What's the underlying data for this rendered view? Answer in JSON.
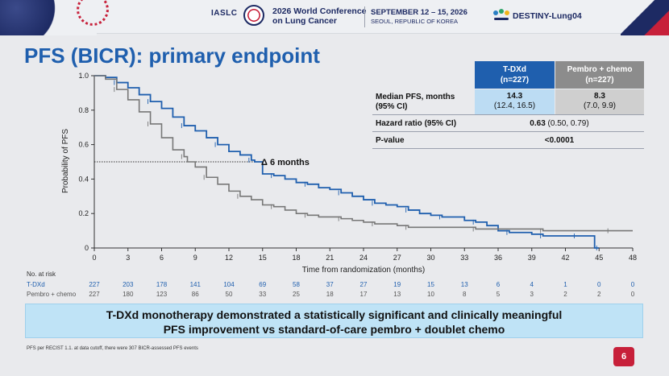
{
  "header": {
    "org": "IASLC",
    "conference_line1": "2026 World Conference",
    "conference_line2": "on Lung Cancer",
    "dates_line1": "SEPTEMBER 12 – 15, 2026",
    "dates_line2": "SEOUL, REPUBLIC OF KOREA",
    "trial": "DESTINY-Lung04"
  },
  "slide": {
    "title": "PFS (BICR): primary endpoint",
    "banner_line1": "T-DXd monotherapy demonstrated a statistically significant and clinically meaningful",
    "banner_line2": "PFS improvement vs standard-of-care pembro + doublet chemo",
    "footnote": "PFS per RECIST 1.1. at data cutoff, there were 307 BICR-assessed PFS events",
    "page_number": "6"
  },
  "stats_table": {
    "col_tdxd_line1": "T-DXd",
    "col_tdxd_line2": "(n=227)",
    "col_pembro_line1": "Pembro + chemo",
    "col_pembro_line2": "(n=227)",
    "median_label_line1": "Median PFS, months",
    "median_label_line2": "(95% CI)",
    "median_tdxd": "14.3",
    "median_tdxd_ci": "(12.4, 16.5)",
    "median_pembro": "8.3",
    "median_pembro_ci": "(7.0, 9.9)",
    "hr_label": "Hazard ratio (95% CI)",
    "hr_value": "0.63",
    "hr_ci": "(0.50, 0.79)",
    "p_label": "P-value",
    "p_value": "<0.0001"
  },
  "risk_table": {
    "title": "No. at risk",
    "rows": [
      {
        "name": "T-DXd",
        "color": "#1f5fae",
        "values": [
          "227",
          "203",
          "178",
          "141",
          "104",
          "69",
          "58",
          "37",
          "27",
          "19",
          "15",
          "13",
          "6",
          "4",
          "1",
          "0",
          "0"
        ]
      },
      {
        "name": "Pembro + chemo",
        "color": "#555555",
        "values": [
          "227",
          "180",
          "123",
          "86",
          "50",
          "33",
          "25",
          "18",
          "17",
          "13",
          "10",
          "8",
          "5",
          "3",
          "2",
          "2",
          "0"
        ]
      }
    ]
  },
  "chart_data": {
    "type": "line",
    "xlabel": "Time from randomization (months)",
    "ylabel": "Probability of PFS",
    "xlim": [
      0,
      48
    ],
    "ylim": [
      0,
      1.0
    ],
    "xticks": [
      "0",
      "3",
      "6",
      "9",
      "12",
      "15",
      "18",
      "21",
      "24",
      "27",
      "30",
      "33",
      "36",
      "39",
      "42",
      "45",
      "48"
    ],
    "yticks": [
      "0",
      "0.2",
      "0.4",
      "0.6",
      "0.8",
      "1.0"
    ],
    "annotation": "Δ 6 months",
    "median_line_y": 0.5,
    "series": [
      {
        "color": "#1f5fae",
        "x": [
          0,
          1,
          2,
          3,
          4,
          5,
          6,
          7,
          8,
          9,
          10,
          11,
          12,
          13,
          14,
          14.3,
          15,
          16,
          17,
          18,
          19,
          20,
          21,
          22,
          23,
          24,
          25,
          26,
          27,
          28,
          29,
          30,
          31,
          32,
          33,
          34,
          35,
          36,
          37,
          38,
          39,
          40,
          41,
          42,
          43,
          44,
          44.6,
          45
        ],
        "y": [
          1.0,
          0.99,
          0.96,
          0.93,
          0.89,
          0.85,
          0.81,
          0.76,
          0.71,
          0.68,
          0.64,
          0.6,
          0.56,
          0.54,
          0.51,
          0.5,
          0.43,
          0.42,
          0.4,
          0.38,
          0.37,
          0.35,
          0.34,
          0.32,
          0.3,
          0.28,
          0.26,
          0.25,
          0.24,
          0.22,
          0.2,
          0.19,
          0.18,
          0.18,
          0.16,
          0.15,
          0.13,
          0.1,
          0.09,
          0.09,
          0.08,
          0.07,
          0.07,
          0.07,
          0.07,
          0.07,
          0.0,
          0.0
        ]
      },
      {
        "color": "#777777",
        "x": [
          0,
          1,
          2,
          3,
          4,
          5,
          6,
          7,
          8,
          8.3,
          9,
          10,
          11,
          12,
          13,
          14,
          15,
          16,
          17,
          18,
          19,
          20,
          21,
          22,
          23,
          24,
          25,
          26,
          27,
          28,
          30,
          32,
          34,
          36,
          38,
          40,
          42,
          44,
          46,
          48
        ],
        "y": [
          1.0,
          0.98,
          0.92,
          0.86,
          0.79,
          0.72,
          0.64,
          0.57,
          0.53,
          0.5,
          0.47,
          0.41,
          0.37,
          0.33,
          0.3,
          0.28,
          0.25,
          0.24,
          0.22,
          0.2,
          0.19,
          0.18,
          0.18,
          0.17,
          0.16,
          0.15,
          0.14,
          0.14,
          0.13,
          0.12,
          0.12,
          0.12,
          0.11,
          0.11,
          0.11,
          0.1,
          0.1,
          0.1,
          0.1,
          0.1
        ]
      }
    ]
  }
}
